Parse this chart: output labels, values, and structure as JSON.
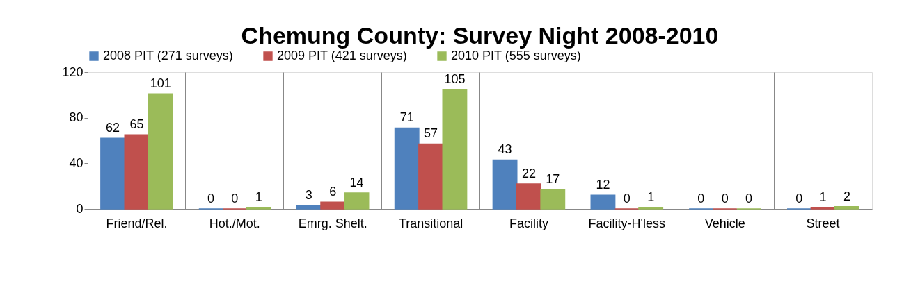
{
  "chart_data": {
    "type": "bar",
    "title": "Chemung County: Survey Night 2008-2010",
    "categories": [
      "Friend/Rel.",
      "Hot./Mot.",
      "Emrg. Shelt.",
      "Transitional",
      "Facility",
      "Facility-H'less",
      "Vehicle",
      "Street"
    ],
    "series": [
      {
        "name": "2008 PIT (271 surveys)",
        "color": "#4f81bd",
        "values": [
          62,
          0,
          3,
          71,
          43,
          12,
          0,
          0
        ]
      },
      {
        "name": "2009 PIT (421 surveys)",
        "color": "#c0504d",
        "values": [
          65,
          0,
          6,
          57,
          22,
          0,
          0,
          1
        ]
      },
      {
        "name": "2010 PIT (555 surveys)",
        "color": "#9bbb59",
        "values": [
          101,
          1,
          14,
          105,
          17,
          1,
          0,
          2
        ]
      }
    ],
    "ylim": [
      0,
      120
    ],
    "yticks": [
      0,
      40,
      80,
      120
    ],
    "grid": "x",
    "legend": "top",
    "data_labels": true
  }
}
